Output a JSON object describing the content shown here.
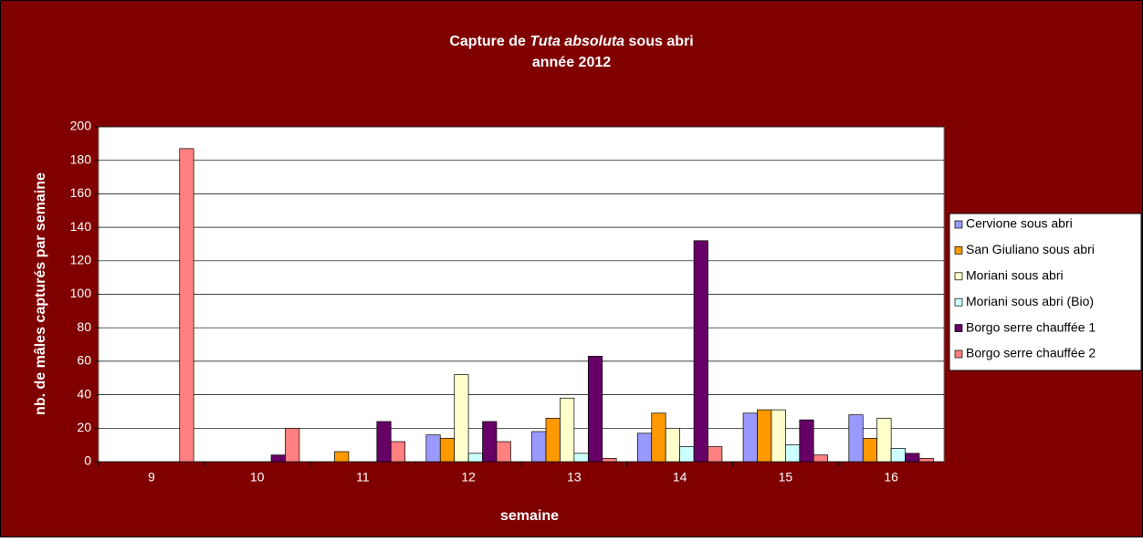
{
  "chart_data": {
    "type": "bar",
    "title_parts": [
      "Capture de ",
      "Tuta absoluta",
      " sous abri"
    ],
    "subtitle": "année 2012",
    "x_label": "semaine",
    "y_label": "nb. de mâles capturés par semaine",
    "categories": [
      "9",
      "10",
      "11",
      "12",
      "13",
      "14",
      "15",
      "16"
    ],
    "series": [
      {
        "name": "Cervione sous abri",
        "color": "#9999ff",
        "values": [
          0,
          0,
          0,
          16,
          18,
          17,
          29,
          28
        ]
      },
      {
        "name": "San Giuliano sous abri",
        "color": "#ff9900",
        "values": [
          0,
          0,
          6,
          14,
          26,
          29,
          31,
          14
        ]
      },
      {
        "name": "Moriani sous abri",
        "color": "#ffffcc",
        "values": [
          0,
          0,
          0,
          52,
          38,
          20,
          31,
          26
        ]
      },
      {
        "name": "Moriani sous abri (Bio)",
        "color": "#ccffff",
        "values": [
          0,
          0,
          0,
          5,
          5,
          9,
          10,
          8
        ]
      },
      {
        "name": "Borgo serre chauffée 1",
        "color": "#660066",
        "values": [
          0,
          4,
          24,
          24,
          63,
          132,
          25,
          5
        ]
      },
      {
        "name": "Borgo serre chauffée 2",
        "color": "#ff8080",
        "values": [
          187,
          20,
          12,
          12,
          2,
          9,
          4,
          2
        ]
      }
    ],
    "ylim": [
      0,
      200
    ],
    "yticks": [
      0,
      20,
      40,
      60,
      80,
      100,
      120,
      140,
      160,
      180,
      200
    ],
    "grid": true,
    "legend": "right",
    "background": "#800000"
  }
}
